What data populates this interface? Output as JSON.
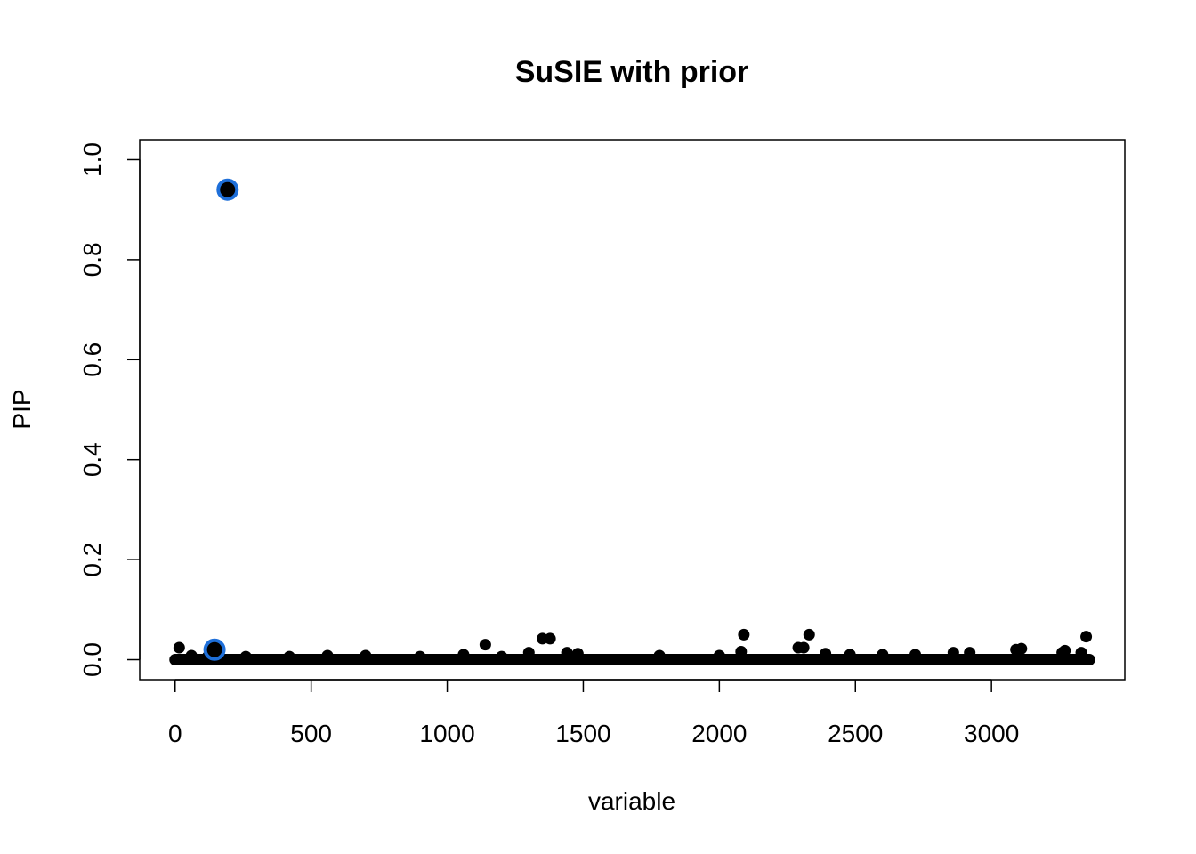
{
  "chart_data": {
    "type": "scatter",
    "title": "SuSIE with prior",
    "xlabel": "variable",
    "ylabel": "PIP",
    "xlim": [
      -130,
      3490
    ],
    "ylim": [
      -0.04,
      1.04
    ],
    "x_ticks": [
      0,
      500,
      1000,
      1500,
      2000,
      2500,
      3000
    ],
    "y_ticks": [
      0.0,
      0.2,
      0.4,
      0.6,
      0.8,
      1.0
    ],
    "x_tick_labels": [
      "0",
      "500",
      "1000",
      "1500",
      "2000",
      "2500",
      "3000"
    ],
    "y_tick_labels": [
      "0.0",
      "0.2",
      "0.4",
      "0.6",
      "0.8",
      "1.0"
    ],
    "grid": false,
    "n_variables": 3360,
    "baseline_value": 0.0,
    "point_color": "#000000",
    "highlight_color": "#1e6fd9",
    "points": [
      {
        "x": 15,
        "y": 0.024
      },
      {
        "x": 60,
        "y": 0.008
      },
      {
        "x": 120,
        "y": 0.006
      },
      {
        "x": 260,
        "y": 0.006
      },
      {
        "x": 420,
        "y": 0.006
      },
      {
        "x": 560,
        "y": 0.008
      },
      {
        "x": 700,
        "y": 0.008
      },
      {
        "x": 900,
        "y": 0.006
      },
      {
        "x": 1060,
        "y": 0.01
      },
      {
        "x": 1140,
        "y": 0.03
      },
      {
        "x": 1200,
        "y": 0.006
      },
      {
        "x": 1300,
        "y": 0.014
      },
      {
        "x": 1350,
        "y": 0.042
      },
      {
        "x": 1378,
        "y": 0.042
      },
      {
        "x": 1440,
        "y": 0.014
      },
      {
        "x": 1480,
        "y": 0.012
      },
      {
        "x": 1780,
        "y": 0.008
      },
      {
        "x": 2000,
        "y": 0.008
      },
      {
        "x": 2080,
        "y": 0.016
      },
      {
        "x": 2090,
        "y": 0.05
      },
      {
        "x": 2290,
        "y": 0.024
      },
      {
        "x": 2310,
        "y": 0.024
      },
      {
        "x": 2330,
        "y": 0.05
      },
      {
        "x": 2390,
        "y": 0.012
      },
      {
        "x": 2480,
        "y": 0.01
      },
      {
        "x": 2600,
        "y": 0.01
      },
      {
        "x": 2720,
        "y": 0.01
      },
      {
        "x": 2860,
        "y": 0.014
      },
      {
        "x": 2920,
        "y": 0.014
      },
      {
        "x": 3090,
        "y": 0.02
      },
      {
        "x": 3110,
        "y": 0.022
      },
      {
        "x": 3260,
        "y": 0.014
      },
      {
        "x": 3270,
        "y": 0.018
      },
      {
        "x": 3330,
        "y": 0.014
      },
      {
        "x": 3348,
        "y": 0.046
      }
    ],
    "highlighted_points": [
      {
        "x": 193,
        "y": 0.94
      },
      {
        "x": 145,
        "y": 0.02
      }
    ]
  }
}
